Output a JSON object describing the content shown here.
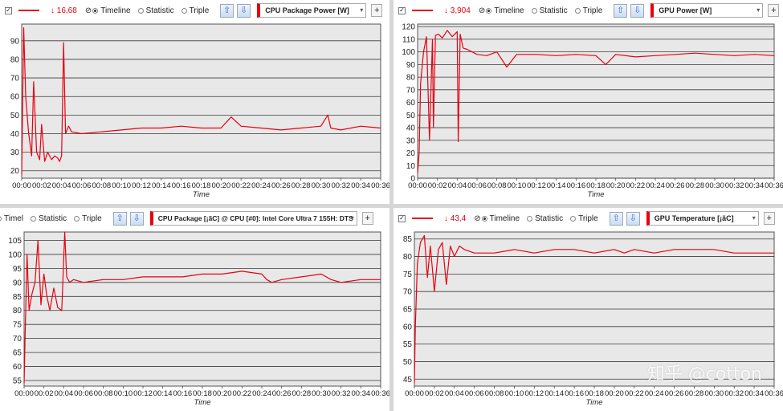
{
  "time_title": "Time",
  "x_ticks": [
    "00:00",
    "00:02",
    "00:04",
    "00:06",
    "00:08",
    "00:10",
    "00:12",
    "00:14",
    "00:16",
    "00:18",
    "00:20",
    "00:22",
    "00:24",
    "00:26",
    "00:28",
    "00:30",
    "00:32",
    "00:34",
    "00:36"
  ],
  "controls": {
    "timeline": "Timeline",
    "statistic": "Statistic",
    "triple": "Triple",
    "timel_cut": "Timel",
    "up_glyph": "⇧",
    "down_glyph": "⇩",
    "plus_glyph": "+",
    "dd_glyph": "▾",
    "check_glyph": "✓",
    "mode_glyph": "⊘"
  },
  "colors": {
    "line": "#e8000f",
    "plot_bg": "#e8e8e8",
    "grid": "#3a3a3a"
  },
  "panels": [
    {
      "sensor": "CPU Package Power [W]",
      "min_value": "16,68",
      "min_arrow": "↓",
      "y_ticks": [
        "20",
        "30",
        "40",
        "50",
        "60",
        "70",
        "80",
        "90"
      ]
    },
    {
      "sensor": "GPU Power [W]",
      "min_value": "3,904",
      "min_arrow": "↓",
      "y_ticks": [
        "0",
        "10",
        "20",
        "30",
        "40",
        "50",
        "60",
        "70",
        "80",
        "90",
        "100",
        "110",
        "120"
      ]
    },
    {
      "sensor": "CPU Package [¡ãC] @ CPU [#0]: Intel Core Ultra 7 155H: DTS",
      "y_ticks": [
        "55",
        "60",
        "65",
        "70",
        "75",
        "80",
        "85",
        "90",
        "95",
        "100",
        "105"
      ]
    },
    {
      "sensor": "GPU Temperature [¡ãC]",
      "min_value": "43,4",
      "min_arrow": "↓",
      "y_ticks": [
        "45",
        "50",
        "55",
        "60",
        "65",
        "70",
        "75",
        "80",
        "85"
      ]
    }
  ],
  "watermark": "知乎 @cotton",
  "chart_data": [
    {
      "type": "line",
      "y_label": "CPU Package Power [W]",
      "x_label": "Time",
      "x_unit": "min",
      "xlim": [
        0,
        36
      ],
      "ylim": [
        16,
        99
      ],
      "series": [
        {
          "x": [
            0,
            0.2,
            0.4,
            0.7,
            1.0,
            1.2,
            1.5,
            1.8,
            2.0,
            2.3,
            2.6,
            3.0,
            3.3,
            3.6,
            3.8,
            4.0,
            4.2,
            4.4,
            4.7,
            5.0,
            6,
            8,
            10,
            12,
            14,
            16,
            18,
            20,
            21,
            22,
            24,
            26,
            28,
            30,
            30.7,
            31,
            32,
            34,
            36
          ],
          "y": [
            18,
            97,
            60,
            40,
            28,
            68,
            30,
            26,
            45,
            25,
            30,
            26,
            28,
            27,
            25,
            28,
            89,
            40,
            44,
            41,
            40,
            41,
            42,
            43,
            43,
            44,
            43,
            43,
            49,
            44,
            43,
            42,
            43,
            44,
            50,
            43,
            42,
            44,
            43
          ]
        }
      ]
    },
    {
      "type": "line",
      "y_label": "GPU Power [W]",
      "x_label": "Time",
      "x_unit": "min",
      "xlim": [
        0,
        36
      ],
      "ylim": [
        0,
        122
      ],
      "series": [
        {
          "x": [
            0,
            0.15,
            0.3,
            0.6,
            0.9,
            1.2,
            1.5,
            1.6,
            1.8,
            2.1,
            2.5,
            3,
            3.5,
            4,
            4.1,
            4.3,
            4.6,
            5,
            6,
            7,
            8,
            9,
            10,
            12,
            14,
            16,
            18,
            19,
            20,
            22,
            24,
            26,
            28,
            30,
            32,
            34,
            36
          ],
          "y": [
            4,
            20,
            75,
            100,
            112,
            30,
            110,
            40,
            113,
            114,
            111,
            117,
            112,
            116,
            29,
            114,
            103,
            102,
            98,
            97,
            100,
            88,
            98,
            98,
            97,
            98,
            97,
            90,
            98,
            96,
            97,
            98,
            99,
            98,
            97,
            98,
            97
          ]
        }
      ]
    },
    {
      "type": "line",
      "y_label": "CPU Package [¡ãC]",
      "x_label": "Time",
      "x_unit": "min",
      "xlim": [
        0,
        36
      ],
      "ylim": [
        53,
        108
      ],
      "series": [
        {
          "x": [
            0,
            0.1,
            0.3,
            0.5,
            0.8,
            1.1,
            1.4,
            1.7,
            2.0,
            2.3,
            2.6,
            3.0,
            3.4,
            3.8,
            4.1,
            4.3,
            4.6,
            5,
            6,
            8,
            10,
            12,
            14,
            16,
            18,
            20,
            22,
            24,
            24.5,
            25,
            26,
            28,
            30,
            31,
            32,
            34,
            36
          ],
          "y": [
            54,
            70,
            100,
            80,
            86,
            90,
            105,
            82,
            93,
            85,
            80,
            88,
            81,
            80,
            108,
            92,
            90,
            91,
            90,
            91,
            91,
            92,
            92,
            92,
            93,
            93,
            94,
            93,
            91,
            90,
            91,
            92,
            93,
            91,
            90,
            91,
            91
          ]
        }
      ]
    },
    {
      "type": "line",
      "y_label": "GPU Temperature [¡ãC]",
      "x_label": "Time",
      "x_unit": "min",
      "xlim": [
        0,
        36
      ],
      "ylim": [
        43,
        87
      ],
      "series": [
        {
          "x": [
            0,
            0.1,
            0.3,
            0.6,
            1.0,
            1.3,
            1.6,
            2.0,
            2.4,
            2.8,
            3.2,
            3.6,
            4.0,
            4.5,
            5,
            6,
            8,
            10,
            12,
            14,
            16,
            18,
            20,
            21,
            22,
            24,
            26,
            28,
            30,
            32,
            34,
            36
          ],
          "y": [
            44,
            60,
            78,
            84,
            86,
            74,
            83,
            70,
            82,
            84,
            72,
            83,
            80,
            83,
            82,
            81,
            81,
            82,
            81,
            82,
            82,
            81,
            82,
            81,
            82,
            81,
            82,
            82,
            82,
            81,
            81,
            81
          ]
        }
      ]
    }
  ]
}
